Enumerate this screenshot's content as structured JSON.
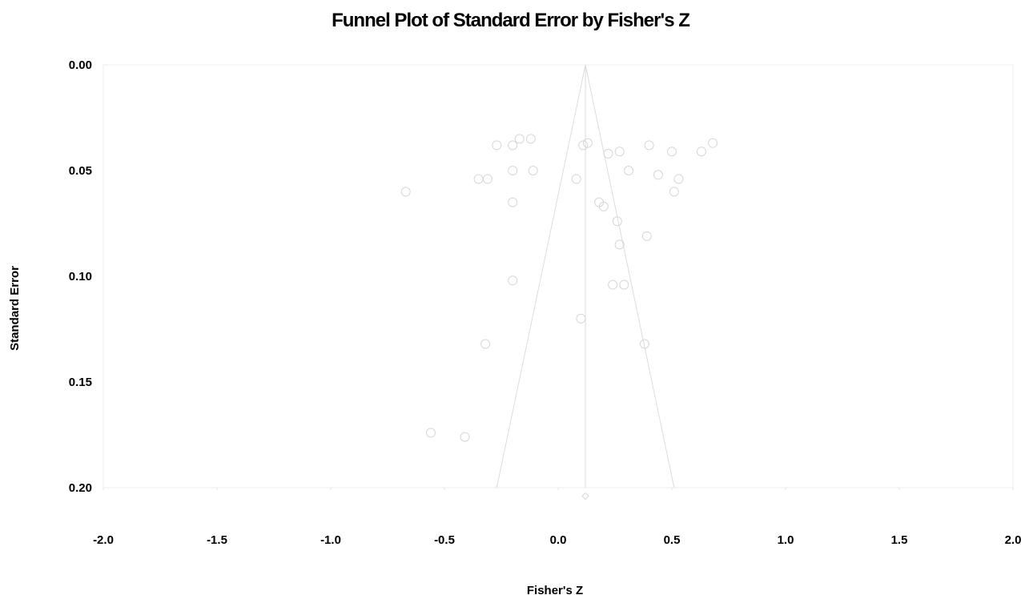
{
  "chart_data": {
    "type": "scatter",
    "title": "Funnel Plot of Standard Error by Fisher's Z",
    "xlabel": "Fisher's Z",
    "ylabel": "Standard Error",
    "xlim": [
      -2.0,
      2.0
    ],
    "ylim": [
      0.0,
      0.2
    ],
    "y_inverted": true,
    "grid": false,
    "x_ticks": [
      "-2.0",
      "-1.5",
      "-1.0",
      "-0.5",
      "0.0",
      "0.5",
      "1.0",
      "1.5",
      "2.0"
    ],
    "y_ticks": [
      "0.00",
      "0.05",
      "0.10",
      "0.15",
      "0.20"
    ],
    "summary_effect": 0.12,
    "funnel": {
      "apex": [
        0.12,
        0.0
      ],
      "base_left": [
        -0.27,
        0.2
      ],
      "base_right": [
        0.51,
        0.2
      ]
    },
    "summary_marker": {
      "x": 0.12,
      "y": 0.204,
      "shape": "diamond"
    },
    "point_color": "#d6d6d6",
    "line_color": "#dcdcdc",
    "points": [
      {
        "x": -0.67,
        "y": 0.06
      },
      {
        "x": -0.35,
        "y": 0.054
      },
      {
        "x": -0.31,
        "y": 0.054
      },
      {
        "x": -0.27,
        "y": 0.038
      },
      {
        "x": -0.2,
        "y": 0.038
      },
      {
        "x": -0.17,
        "y": 0.035
      },
      {
        "x": -0.12,
        "y": 0.035
      },
      {
        "x": -0.2,
        "y": 0.05
      },
      {
        "x": -0.11,
        "y": 0.05
      },
      {
        "x": -0.2,
        "y": 0.065
      },
      {
        "x": 0.08,
        "y": 0.054
      },
      {
        "x": 0.11,
        "y": 0.038
      },
      {
        "x": 0.13,
        "y": 0.037
      },
      {
        "x": 0.22,
        "y": 0.042
      },
      {
        "x": 0.27,
        "y": 0.041
      },
      {
        "x": 0.31,
        "y": 0.05
      },
      {
        "x": 0.4,
        "y": 0.038
      },
      {
        "x": 0.44,
        "y": 0.052
      },
      {
        "x": 0.5,
        "y": 0.041
      },
      {
        "x": 0.53,
        "y": 0.054
      },
      {
        "x": 0.51,
        "y": 0.06
      },
      {
        "x": 0.63,
        "y": 0.041
      },
      {
        "x": 0.68,
        "y": 0.037
      },
      {
        "x": 0.18,
        "y": 0.065
      },
      {
        "x": 0.2,
        "y": 0.067
      },
      {
        "x": 0.26,
        "y": 0.074
      },
      {
        "x": 0.27,
        "y": 0.085
      },
      {
        "x": 0.39,
        "y": 0.081
      },
      {
        "x": -0.2,
        "y": 0.102
      },
      {
        "x": 0.24,
        "y": 0.104
      },
      {
        "x": 0.29,
        "y": 0.104
      },
      {
        "x": 0.1,
        "y": 0.12
      },
      {
        "x": -0.32,
        "y": 0.132
      },
      {
        "x": 0.38,
        "y": 0.132
      },
      {
        "x": -0.56,
        "y": 0.174
      },
      {
        "x": -0.41,
        "y": 0.176
      }
    ]
  }
}
